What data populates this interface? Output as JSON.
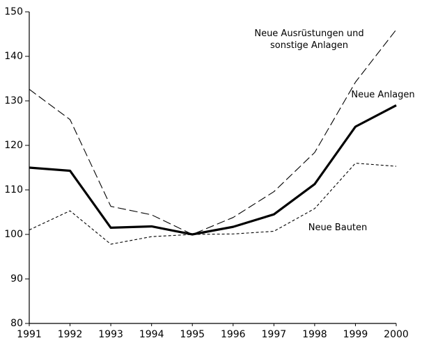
{
  "chart_data": {
    "type": "line",
    "x": [
      1991,
      1992,
      1993,
      1994,
      1995,
      1996,
      1997,
      1998,
      1999,
      2000
    ],
    "series": [
      {
        "name": "Neue Ausrüstungen und sonstige Anlagen",
        "color": "#000000",
        "dash": "long",
        "values": [
          132.6,
          125.8,
          106.3,
          104.4,
          100,
          103.8,
          109.6,
          118.4,
          134.2,
          146
        ]
      },
      {
        "name": "Neue Anlagen",
        "color": "#000000",
        "dash": "solid",
        "values": [
          115,
          114.3,
          101.5,
          101.8,
          100,
          101.7,
          104.5,
          111.3,
          124.2,
          129
        ]
      },
      {
        "name": "Neue Bauten",
        "color": "#000000",
        "dash": "short",
        "values": [
          101,
          105.3,
          97.8,
          99.5,
          100,
          100.1,
          100.7,
          105.8,
          116,
          115.3
        ]
      }
    ],
    "xlim": [
      1991,
      2000
    ],
    "xticks": [
      1991,
      1992,
      1993,
      1994,
      1995,
      1996,
      1997,
      1998,
      1999,
      2000
    ],
    "ylim": [
      80,
      150
    ],
    "yticks": [
      80,
      90,
      100,
      110,
      120,
      130,
      140,
      150
    ],
    "grid": false
  }
}
